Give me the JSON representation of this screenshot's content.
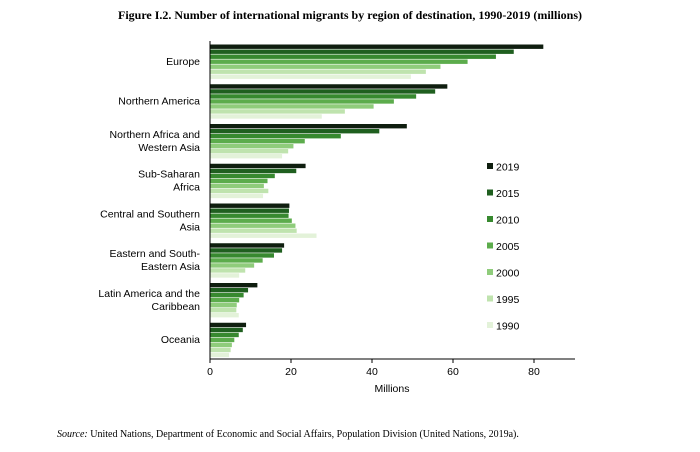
{
  "chart_data": {
    "type": "bar",
    "orientation": "horizontal",
    "title": "Figure I.2. Number of international migrants by region of destination, 1990-2019 (millions)",
    "xlabel": "Millions",
    "ylabel": "",
    "xlim": [
      0,
      90
    ],
    "xticks": [
      0,
      20,
      40,
      60,
      80
    ],
    "legend_position": "right",
    "categories": [
      "Europe",
      "Northern America",
      "Northern Africa and Western Asia",
      "Sub-Saharan Africa",
      "Central and Southern Asia",
      "Eastern and South-Eastern Asia",
      "Latin America and the Caribbean",
      "Oceania"
    ],
    "category_lines": [
      [
        "Europe"
      ],
      [
        "Northern America"
      ],
      [
        "Northern Africa and",
        "Western Asia"
      ],
      [
        "Sub-Saharan",
        "Africa"
      ],
      [
        "Central and Southern",
        "Asia"
      ],
      [
        "Eastern and South-",
        "Eastern Asia"
      ],
      [
        "Latin America and the",
        "Caribbean"
      ],
      [
        "Oceania"
      ]
    ],
    "series": [
      {
        "name": "2019",
        "color": "#0f1e0f",
        "values": [
          82.3,
          58.6,
          48.6,
          23.6,
          19.6,
          18.3,
          11.7,
          8.9
        ]
      },
      {
        "name": "2015",
        "color": "#1f5f1f",
        "values": [
          75.0,
          55.6,
          41.8,
          21.3,
          19.5,
          17.8,
          9.4,
          8.1
        ]
      },
      {
        "name": "2010",
        "color": "#37892f",
        "values": [
          70.6,
          50.9,
          32.3,
          16.0,
          19.4,
          15.8,
          8.3,
          7.1
        ]
      },
      {
        "name": "2005",
        "color": "#5cac4c",
        "values": [
          63.6,
          45.4,
          23.4,
          14.2,
          20.2,
          13.0,
          7.2,
          6.0
        ]
      },
      {
        "name": "2000",
        "color": "#8fcc7b",
        "values": [
          56.9,
          40.4,
          20.6,
          13.3,
          21.1,
          10.9,
          6.6,
          5.4
        ]
      },
      {
        "name": "1995",
        "color": "#bfe3ae",
        "values": [
          53.3,
          33.3,
          19.3,
          14.4,
          21.4,
          8.7,
          6.5,
          5.1
        ]
      },
      {
        "name": "1990",
        "color": "#e3f2d9",
        "values": [
          49.6,
          27.6,
          17.8,
          13.1,
          26.3,
          7.2,
          7.1,
          4.7
        ]
      }
    ]
  },
  "source": {
    "label": "Source:",
    "text": " United Nations, Department of Economic and Social Affairs, Population Division (United Nations, 2019a)."
  }
}
